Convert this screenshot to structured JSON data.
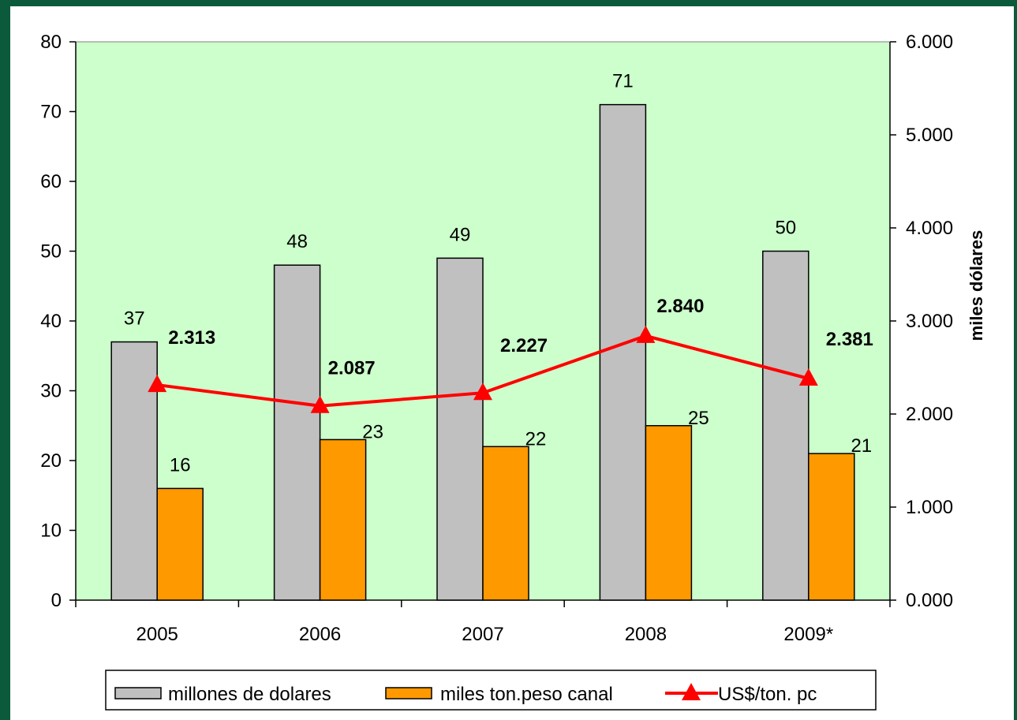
{
  "chart_data": {
    "type": "bar",
    "categories": [
      "2005",
      "2006",
      "2007",
      "2008",
      "2009*"
    ],
    "series": [
      {
        "name": "millones de dolares",
        "kind": "bar",
        "axis": "left",
        "color": "#c0c0c0",
        "values": [
          37,
          48,
          49,
          71,
          50
        ],
        "labels": [
          "37",
          "48",
          "49",
          "71",
          "50"
        ]
      },
      {
        "name": "miles ton.peso canal",
        "kind": "bar",
        "axis": "left",
        "color": "#ff9900",
        "values": [
          16,
          23,
          22,
          25,
          21
        ],
        "labels": [
          "16",
          "23",
          "22",
          "25",
          "21"
        ]
      },
      {
        "name": "US$/ton. pc",
        "kind": "line",
        "axis": "right",
        "color": "#ff0000",
        "marker": "triangle",
        "values": [
          2313,
          2087,
          2227,
          2840,
          2381
        ],
        "labels": [
          "2.313",
          "2.087",
          "2.227",
          "2.840",
          "2.381"
        ]
      }
    ],
    "y_left": {
      "min": 0,
      "max": 80,
      "ticks": [
        "0",
        "10",
        "20",
        "30",
        "40",
        "50",
        "60",
        "70",
        "80"
      ]
    },
    "y_right": {
      "min": 0,
      "max": 6000,
      "label": "miles dólares",
      "ticks": [
        "0.000",
        "1.000",
        "2.000",
        "3.000",
        "4.000",
        "5.000",
        "6.000"
      ]
    },
    "plot_background": "#ccffcc",
    "grid": false,
    "legend_position": "bottom"
  }
}
